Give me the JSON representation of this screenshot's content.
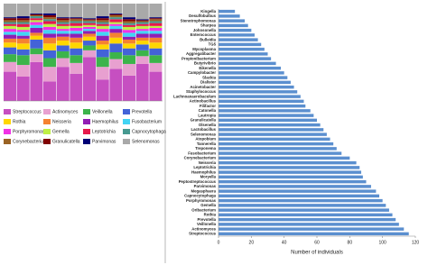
{
  "chart_data": [
    {
      "type": "stacked_bar",
      "categories": [
        null,
        null,
        null,
        null,
        null,
        null,
        null,
        null,
        null,
        null,
        null,
        null
      ],
      "ylim": [
        0,
        100
      ],
      "series": [
        {
          "name": "Streptococcus",
          "color": "#c64fc1",
          "values": [
            30,
            25,
            40,
            20,
            35,
            28,
            45,
            22,
            33,
            26,
            38,
            30
          ]
        },
        {
          "name": "Actinomyces",
          "color": "#e8a0d0",
          "values": [
            10,
            12,
            8,
            15,
            9,
            11,
            7,
            13,
            10,
            12,
            8,
            9
          ]
        },
        {
          "name": "Veillonella",
          "color": "#3cb44b",
          "values": [
            8,
            10,
            6,
            9,
            7,
            8,
            5,
            10,
            7,
            9,
            6,
            8
          ]
        },
        {
          "name": "Prevotella",
          "color": "#4363d8",
          "values": [
            7,
            6,
            9,
            8,
            6,
            7,
            5,
            8,
            9,
            7,
            6,
            7
          ]
        },
        {
          "name": "Rothia",
          "color": "#ffd700",
          "values": [
            5,
            6,
            4,
            7,
            5,
            6,
            4,
            5,
            6,
            5,
            4,
            6
          ]
        },
        {
          "name": "Neisseria",
          "color": "#f58231",
          "values": [
            4,
            5,
            3,
            6,
            4,
            5,
            3,
            4,
            5,
            4,
            3,
            5
          ]
        },
        {
          "name": "Haemophilus",
          "color": "#911eb4",
          "values": [
            4,
            3,
            5,
            4,
            3,
            4,
            3,
            5,
            4,
            3,
            4,
            4
          ]
        },
        {
          "name": "Fusobacterium",
          "color": "#42d4f4",
          "values": [
            3,
            4,
            3,
            4,
            3,
            3,
            2,
            4,
            3,
            4,
            3,
            3
          ]
        },
        {
          "name": "Porphyromonas",
          "color": "#f032e6",
          "values": [
            3,
            2,
            3,
            3,
            2,
            3,
            2,
            3,
            2,
            3,
            2,
            3
          ]
        },
        {
          "name": "Gemella",
          "color": "#bfef45",
          "values": [
            3,
            3,
            2,
            3,
            3,
            2,
            2,
            3,
            2,
            3,
            3,
            2
          ]
        },
        {
          "name": "Leptotrichia",
          "color": "#e6194b",
          "values": [
            2,
            3,
            2,
            3,
            2,
            3,
            2,
            2,
            3,
            2,
            2,
            3
          ]
        },
        {
          "name": "Capnocytophaga",
          "color": "#469990",
          "values": [
            2,
            2,
            2,
            2,
            2,
            2,
            2,
            2,
            2,
            2,
            2,
            2
          ]
        },
        {
          "name": "Corynebacterium",
          "color": "#9a6324",
          "values": [
            2,
            2,
            1,
            2,
            2,
            2,
            1,
            2,
            2,
            2,
            1,
            2
          ]
        },
        {
          "name": "Granulicatella",
          "color": "#800000",
          "values": [
            2,
            2,
            1,
            2,
            2,
            1,
            1,
            2,
            1,
            2,
            1,
            1
          ]
        },
        {
          "name": "Parvimonas",
          "color": "#000075",
          "values": [
            1,
            2,
            1,
            2,
            1,
            1,
            1,
            2,
            1,
            2,
            1,
            1
          ]
        },
        {
          "name": "Selenomonas",
          "color": "#a9a9a9",
          "values": [
            14,
            13,
            10,
            10,
            14,
            14,
            15,
            13,
            10,
            14,
            16,
            14
          ]
        }
      ]
    },
    {
      "type": "hbar",
      "xlabel": "Number of individuals",
      "color": "#5b8fcf",
      "categories": [
        "Kingella",
        "Desulfobulbus",
        "Stenotrophomonas",
        "Sharpea",
        "Johnsonella",
        "Enterococcus",
        "Bulleidia",
        "TG5",
        "Mycoplasma",
        "Aggregatibacter",
        "Propionibacterium",
        "Butyrivibrio",
        "Eikenella",
        "Campylobacter",
        "Slackia",
        "Dialister",
        "Acinetobacter",
        "Staphylococcus",
        "Lachnoanaerobaculum",
        "Actinobacillus",
        "Filifactor",
        "Catonella",
        "Lautropia",
        "Granulicatella",
        "Olsenella",
        "Lactobacillus",
        "Selenomonas",
        "Atopobium",
        "Tannerella",
        "Treponema",
        "Fusobacterium",
        "Corynebacterium",
        "Neisseria",
        "Leptotrichia",
        "Haemophilus",
        "Moryella",
        "Peptostreptococcus",
        "Parvimonas",
        "Megasphaera",
        "Capnocytophaga",
        "Porphyromonas",
        "Gemella",
        "Oribacterium",
        "Rothia",
        "Prevotella",
        "Veillonella",
        "Actinomyces",
        "Streptococcus"
      ],
      "values": [
        10,
        13,
        16,
        18,
        20,
        22,
        24,
        26,
        28,
        30,
        32,
        35,
        38,
        40,
        42,
        44,
        46,
        48,
        50,
        52,
        53,
        56,
        58,
        60,
        62,
        64,
        66,
        68,
        70,
        72,
        75,
        80,
        84,
        86,
        87,
        88,
        90,
        93,
        96,
        98,
        100,
        102,
        104,
        106,
        108,
        110,
        113,
        116
      ],
      "xlim": [
        0,
        120
      ],
      "xticks": [
        0,
        20,
        40,
        60,
        80,
        100,
        120
      ]
    }
  ]
}
